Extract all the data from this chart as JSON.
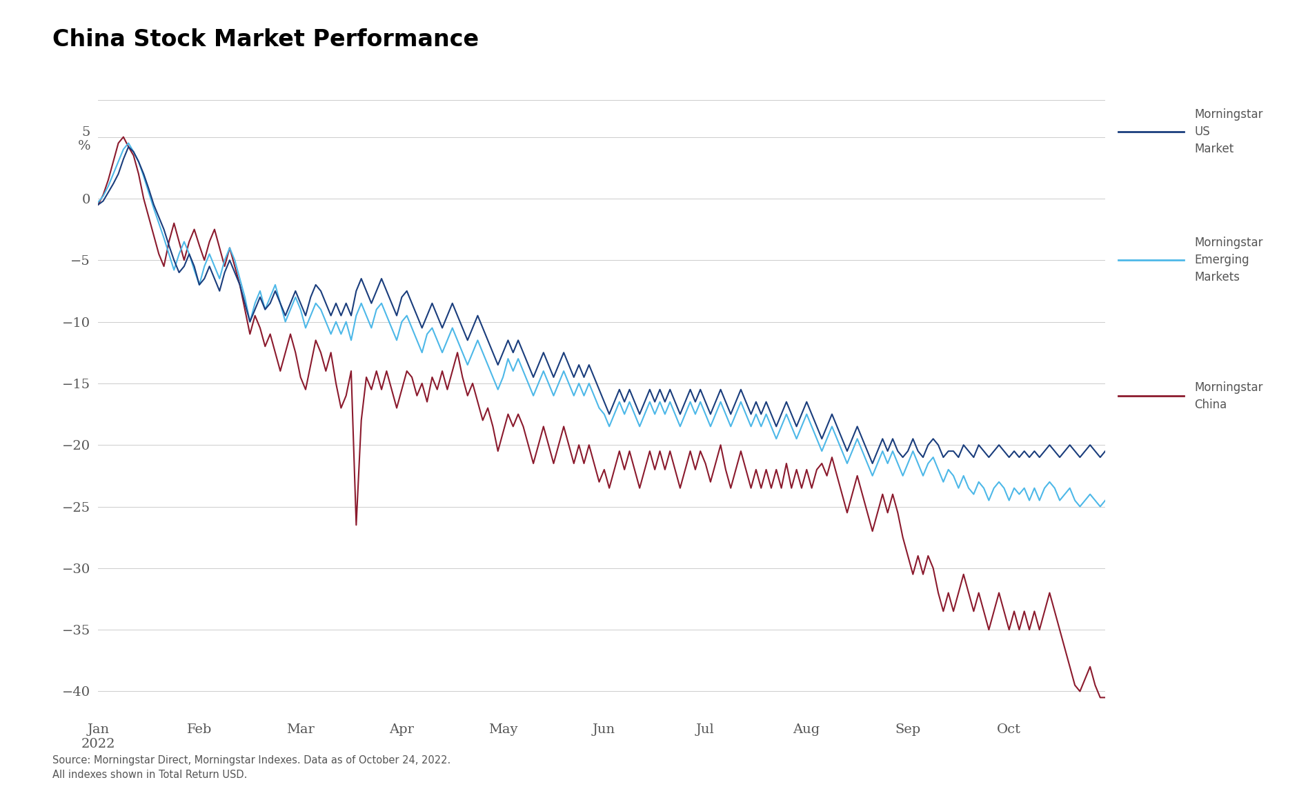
{
  "title": "China Stock Market Performance",
  "source_text": "Source: Morningstar Direct, Morningstar Indexes. Data as of October 24, 2022.\nAll indexes shown in Total Return USD.",
  "ylabel": "%",
  "ylim": [
    -42,
    8
  ],
  "yticks": [
    5,
    0,
    -5,
    -10,
    -15,
    -20,
    -25,
    -30,
    -35,
    -40
  ],
  "colors": {
    "us_market": "#1a3d7c",
    "emerging": "#4db8e8",
    "china": "#8b1a2d"
  },
  "legend": {
    "us_label": "Morningstar\nUS\nMarket",
    "em_label": "Morningstar\nEmerging\nMarkets",
    "china_label": "Morningstar\nChina"
  },
  "x_labels": [
    "Jan\n2022",
    "Feb",
    "Mar",
    "Apr",
    "May",
    "Jun",
    "Jul",
    "Aug",
    "Sep",
    "Oct"
  ],
  "background": "#ffffff",
  "grid_color": "#cccccc",
  "text_color": "#555555",
  "us_market": [
    -0.5,
    -0.2,
    0.5,
    1.2,
    2.0,
    3.2,
    4.2,
    3.8,
    3.0,
    2.0,
    0.8,
    -0.5,
    -1.5,
    -2.5,
    -3.8,
    -5.0,
    -6.0,
    -5.5,
    -4.5,
    -5.5,
    -7.0,
    -6.5,
    -5.5,
    -6.5,
    -7.5,
    -6.0,
    -5.0,
    -6.0,
    -7.0,
    -8.5,
    -10.0,
    -9.0,
    -8.0,
    -9.0,
    -8.5,
    -7.5,
    -8.5,
    -9.5,
    -8.5,
    -7.5,
    -8.5,
    -9.5,
    -8.0,
    -7.0,
    -7.5,
    -8.5,
    -9.5,
    -8.5,
    -9.5,
    -8.5,
    -9.5,
    -7.5,
    -6.5,
    -7.5,
    -8.5,
    -7.5,
    -6.5,
    -7.5,
    -8.5,
    -9.5,
    -8.0,
    -7.5,
    -8.5,
    -9.5,
    -10.5,
    -9.5,
    -8.5,
    -9.5,
    -10.5,
    -9.5,
    -8.5,
    -9.5,
    -10.5,
    -11.5,
    -10.5,
    -9.5,
    -10.5,
    -11.5,
    -12.5,
    -13.5,
    -12.5,
    -11.5,
    -12.5,
    -11.5,
    -12.5,
    -13.5,
    -14.5,
    -13.5,
    -12.5,
    -13.5,
    -14.5,
    -13.5,
    -12.5,
    -13.5,
    -14.5,
    -13.5,
    -14.5,
    -13.5,
    -14.5,
    -15.5,
    -16.5,
    -17.5,
    -16.5,
    -15.5,
    -16.5,
    -15.5,
    -16.5,
    -17.5,
    -16.5,
    -15.5,
    -16.5,
    -15.5,
    -16.5,
    -15.5,
    -16.5,
    -17.5,
    -16.5,
    -15.5,
    -16.5,
    -15.5,
    -16.5,
    -17.5,
    -16.5,
    -15.5,
    -16.5,
    -17.5,
    -16.5,
    -15.5,
    -16.5,
    -17.5,
    -16.5,
    -17.5,
    -16.5,
    -17.5,
    -18.5,
    -17.5,
    -16.5,
    -17.5,
    -18.5,
    -17.5,
    -16.5,
    -17.5,
    -18.5,
    -19.5,
    -18.5,
    -17.5,
    -18.5,
    -19.5,
    -20.5,
    -19.5,
    -18.5,
    -19.5,
    -20.5,
    -21.5,
    -20.5,
    -19.5,
    -20.5,
    -19.5,
    -20.5,
    -21.0,
    -20.5,
    -19.5,
    -20.5,
    -21.0,
    -20.0,
    -19.5,
    -20.0,
    -21.0,
    -20.5,
    -20.5,
    -21.0,
    -20.0,
    -20.5,
    -21.0,
    -20.0,
    -20.5,
    -21.0,
    -20.5,
    -20.0,
    -20.5,
    -21.0,
    -20.5,
    -21.0,
    -20.5,
    -21.0,
    -20.5,
    -21.0,
    -20.5,
    -20.0,
    -20.5,
    -21.0,
    -20.5,
    -20.0,
    -20.5,
    -21.0,
    -20.5,
    -20.0,
    -20.5,
    -21.0,
    -20.5
  ],
  "emerging": [
    -0.3,
    0.2,
    1.0,
    2.0,
    3.0,
    4.0,
    4.5,
    3.8,
    3.0,
    1.8,
    0.5,
    -0.8,
    -2.0,
    -3.2,
    -4.5,
    -5.8,
    -4.5,
    -3.5,
    -4.5,
    -5.8,
    -7.0,
    -5.5,
    -4.5,
    -5.5,
    -6.5,
    -5.0,
    -4.0,
    -5.0,
    -6.5,
    -8.0,
    -10.0,
    -8.5,
    -7.5,
    -9.0,
    -8.0,
    -7.0,
    -8.5,
    -10.0,
    -9.0,
    -8.0,
    -9.0,
    -10.5,
    -9.5,
    -8.5,
    -9.0,
    -10.0,
    -11.0,
    -10.0,
    -11.0,
    -10.0,
    -11.5,
    -9.5,
    -8.5,
    -9.5,
    -10.5,
    -9.0,
    -8.5,
    -9.5,
    -10.5,
    -11.5,
    -10.0,
    -9.5,
    -10.5,
    -11.5,
    -12.5,
    -11.0,
    -10.5,
    -11.5,
    -12.5,
    -11.5,
    -10.5,
    -11.5,
    -12.5,
    -13.5,
    -12.5,
    -11.5,
    -12.5,
    -13.5,
    -14.5,
    -15.5,
    -14.5,
    -13.0,
    -14.0,
    -13.0,
    -14.0,
    -15.0,
    -16.0,
    -15.0,
    -14.0,
    -15.0,
    -16.0,
    -15.0,
    -14.0,
    -15.0,
    -16.0,
    -15.0,
    -16.0,
    -15.0,
    -16.0,
    -17.0,
    -17.5,
    -18.5,
    -17.5,
    -16.5,
    -17.5,
    -16.5,
    -17.5,
    -18.5,
    -17.5,
    -16.5,
    -17.5,
    -16.5,
    -17.5,
    -16.5,
    -17.5,
    -18.5,
    -17.5,
    -16.5,
    -17.5,
    -16.5,
    -17.5,
    -18.5,
    -17.5,
    -16.5,
    -17.5,
    -18.5,
    -17.5,
    -16.5,
    -17.5,
    -18.5,
    -17.5,
    -18.5,
    -17.5,
    -18.5,
    -19.5,
    -18.5,
    -17.5,
    -18.5,
    -19.5,
    -18.5,
    -17.5,
    -18.5,
    -19.5,
    -20.5,
    -19.5,
    -18.5,
    -19.5,
    -20.5,
    -21.5,
    -20.5,
    -19.5,
    -20.5,
    -21.5,
    -22.5,
    -21.5,
    -20.5,
    -21.5,
    -20.5,
    -21.5,
    -22.5,
    -21.5,
    -20.5,
    -21.5,
    -22.5,
    -21.5,
    -21.0,
    -22.0,
    -23.0,
    -22.0,
    -22.5,
    -23.5,
    -22.5,
    -23.5,
    -24.0,
    -23.0,
    -23.5,
    -24.5,
    -23.5,
    -23.0,
    -23.5,
    -24.5,
    -23.5,
    -24.0,
    -23.5,
    -24.5,
    -23.5,
    -24.5,
    -23.5,
    -23.0,
    -23.5,
    -24.5,
    -24.0,
    -23.5,
    -24.5,
    -25.0,
    -24.5,
    -24.0,
    -24.5,
    -25.0,
    -24.5
  ],
  "china": [
    -0.5,
    0.3,
    1.5,
    3.0,
    4.5,
    5.0,
    4.2,
    3.5,
    2.0,
    0.0,
    -1.5,
    -3.0,
    -4.5,
    -5.5,
    -3.5,
    -2.0,
    -3.5,
    -5.0,
    -3.5,
    -2.5,
    -3.8,
    -5.0,
    -3.5,
    -2.5,
    -4.0,
    -5.5,
    -4.0,
    -5.5,
    -7.0,
    -9.0,
    -11.0,
    -9.5,
    -10.5,
    -12.0,
    -11.0,
    -12.5,
    -14.0,
    -12.5,
    -11.0,
    -12.5,
    -14.5,
    -15.5,
    -13.5,
    -11.5,
    -12.5,
    -14.0,
    -12.5,
    -15.0,
    -17.0,
    -16.0,
    -14.0,
    -26.5,
    -18.0,
    -14.5,
    -15.5,
    -14.0,
    -15.5,
    -14.0,
    -15.5,
    -17.0,
    -15.5,
    -14.0,
    -14.5,
    -16.0,
    -15.0,
    -16.5,
    -14.5,
    -15.5,
    -14.0,
    -15.5,
    -14.0,
    -12.5,
    -14.5,
    -16.0,
    -15.0,
    -16.5,
    -18.0,
    -17.0,
    -18.5,
    -20.5,
    -19.0,
    -17.5,
    -18.5,
    -17.5,
    -18.5,
    -20.0,
    -21.5,
    -20.0,
    -18.5,
    -20.0,
    -21.5,
    -20.0,
    -18.5,
    -20.0,
    -21.5,
    -20.0,
    -21.5,
    -20.0,
    -21.5,
    -23.0,
    -22.0,
    -23.5,
    -22.0,
    -20.5,
    -22.0,
    -20.5,
    -22.0,
    -23.5,
    -22.0,
    -20.5,
    -22.0,
    -20.5,
    -22.0,
    -20.5,
    -22.0,
    -23.5,
    -22.0,
    -20.5,
    -22.0,
    -20.5,
    -21.5,
    -23.0,
    -21.5,
    -20.0,
    -22.0,
    -23.5,
    -22.0,
    -20.5,
    -22.0,
    -23.5,
    -22.0,
    -23.5,
    -22.0,
    -23.5,
    -22.0,
    -23.5,
    -21.5,
    -23.5,
    -22.0,
    -23.5,
    -22.0,
    -23.5,
    -22.0,
    -21.5,
    -22.5,
    -21.0,
    -22.5,
    -24.0,
    -25.5,
    -24.0,
    -22.5,
    -24.0,
    -25.5,
    -27.0,
    -25.5,
    -24.0,
    -25.5,
    -24.0,
    -25.5,
    -27.5,
    -29.0,
    -30.5,
    -29.0,
    -30.5,
    -29.0,
    -30.0,
    -32.0,
    -33.5,
    -32.0,
    -33.5,
    -32.0,
    -30.5,
    -32.0,
    -33.5,
    -32.0,
    -33.5,
    -35.0,
    -33.5,
    -32.0,
    -33.5,
    -35.0,
    -33.5,
    -35.0,
    -33.5,
    -35.0,
    -33.5,
    -35.0,
    -33.5,
    -32.0,
    -33.5,
    -35.0,
    -36.5,
    -38.0,
    -39.5,
    -40.0,
    -39.0,
    -38.0,
    -39.5,
    -40.5,
    -40.5
  ]
}
